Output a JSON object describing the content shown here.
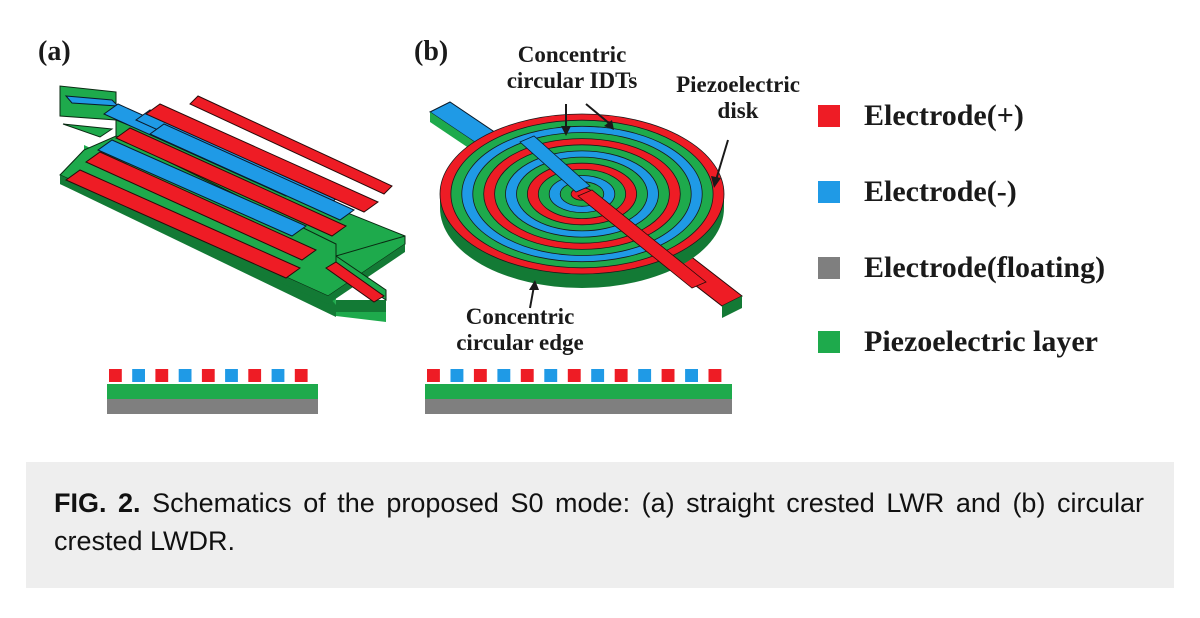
{
  "figure": {
    "panel_a": {
      "label": "(a)"
    },
    "panel_b": {
      "label": "(b)",
      "annotations": {
        "concentric_idts": [
          "Concentric",
          "circular IDTs"
        ],
        "piezo_disk": [
          "Piezoelectric",
          "disk"
        ],
        "concentric_edge": [
          "Concentric",
          "circular edge"
        ]
      }
    },
    "legend": [
      {
        "label": "Electrode(+)",
        "color": "#ee1c25"
      },
      {
        "label": "Electrode(-)",
        "color": "#1f9ae6"
      },
      {
        "label": "Electrode(floating)",
        "color": "#7f7f7f"
      },
      {
        "label": "Piezoelectric layer",
        "color": "#1eaa4c"
      }
    ]
  },
  "caption": {
    "fig_label": "FIG. 2.",
    "text": " Schematics of the proposed S0 mode: (a) straight crested LWR and (b) circular crested LWDR."
  }
}
